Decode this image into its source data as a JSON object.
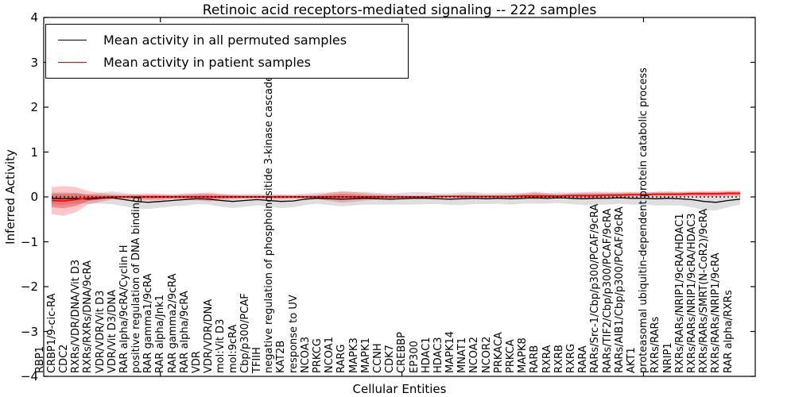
{
  "title": "Retinoic acid receptors-mediated signaling -- 222 samples",
  "axes": {
    "ylabel": "Inferred Activity",
    "xlabel": "Cellular Entities",
    "yticks": [
      4,
      3,
      2,
      1,
      0,
      -1,
      -2,
      -3,
      -4
    ]
  },
  "legend": {
    "items": [
      {
        "label": "Mean activity in all permuted samples",
        "color": "#000000"
      },
      {
        "label": "Mean activity in patient samples",
        "color": "#ff0000"
      }
    ]
  },
  "chart_data": {
    "type": "line",
    "title": "Retinoic acid receptors-mediated signaling -- 222 samples",
    "xlabel": "Cellular Entities",
    "ylabel": "Inferred Activity",
    "ylim": [
      -4,
      4
    ],
    "legend_position": "upper left",
    "grid": false,
    "zero_line": {
      "show": true,
      "style": "dotted",
      "color": "#000000"
    },
    "colors": {
      "permuted_line": "#000000",
      "patient_line": "#ff0000",
      "permuted_band": "rgba(0,0,0,0.13)",
      "patient_band_outer": "rgba(255,0,0,0.22)",
      "patient_band_inner": "rgba(220,0,0,0.30)"
    },
    "categories": [
      "RBP1",
      "CRBP1/9-cic-RA",
      "CDC2",
      "RXRs/VDR/DNA/Vit D3",
      "RXRs/RXRs/DNA/9cRA",
      "VDR/VDR/Vit D3",
      "VDR/Vit D3/DNA",
      "RAR alpha/9cRA/Cyclin H",
      "positive regulation of DNA binding",
      "RAR gamma1/9cRA",
      "RAR alpha/Jnk1",
      "RAR gamma2/9cRA",
      "RAR alpha/9cRA",
      "VDR",
      "VDR/VDR/DNA",
      "mol:Vit D3",
      "mol:9cRA",
      "Cbp/p300/PCAF",
      "TFIIH",
      "negative regulation of phosphoinositide 3-kinase cascade",
      "KAT2B",
      "response to UV",
      "NCOA3",
      "PRKCG",
      "NCOA1",
      "RARG",
      "MAPK3",
      "MAPK1",
      "CCNH",
      "CDK7",
      "CREBBP",
      "EP300",
      "HDAC1",
      "HDAC3",
      "MAPK14",
      "MNAT1",
      "NCOA2",
      "NCOR2",
      "PRKACA",
      "PRKCA",
      "MAPK8",
      "RARB",
      "RXRA",
      "RXRB",
      "RXRG",
      "RARA",
      "RARs/Src-1/Cbp/p300/PCAF/9cRA",
      "RARs/TIF2/Cbp/p300/PCAF/9cRA",
      "RARs/AIB1/Cbp/p300/PCAF/9cRA",
      "AKT1",
      "proteasomal ubiquitin-dependent protein catabolic process",
      "RXRs/RARs",
      "NRIP1",
      "RXRs/RARs/NRIP1/9cRA/HDAC1",
      "RXRs/RARs/NRIP1/9cRA/HDAC3",
      "RXRs/RARs/SMRT(N-CoR2)/9cRA",
      "RXRs/RARs/NRIP1/9cRA",
      "RAR alpha/RXRs"
    ],
    "series": [
      {
        "name": "Mean activity in all permuted samples",
        "color": "#000000",
        "values": [
          -0.03,
          -0.04,
          -0.03,
          -0.05,
          -0.03,
          -0.02,
          -0.06,
          -0.1,
          -0.12,
          -0.1,
          -0.08,
          -0.06,
          -0.04,
          -0.05,
          -0.08,
          -0.1,
          -0.08,
          -0.06,
          -0.08,
          -0.1,
          -0.09,
          -0.05,
          -0.03,
          -0.04,
          -0.05,
          -0.04,
          -0.03,
          -0.04,
          -0.05,
          -0.04,
          -0.03,
          -0.03,
          -0.04,
          -0.05,
          -0.04,
          -0.03,
          -0.04,
          -0.03,
          -0.04,
          -0.03,
          -0.02,
          -0.03,
          -0.02,
          -0.03,
          -0.04,
          -0.03,
          -0.03,
          -0.02,
          -0.03,
          -0.03,
          -0.04,
          -0.03,
          -0.04,
          -0.06,
          -0.1,
          -0.12,
          -0.08,
          -0.05
        ],
        "band_halfwidth": [
          0.13,
          0.14,
          0.12,
          0.1,
          0.12,
          0.14,
          0.15,
          0.16,
          0.15,
          0.14,
          0.13,
          0.14,
          0.12,
          0.12,
          0.14,
          0.15,
          0.14,
          0.13,
          0.14,
          0.15,
          0.14,
          0.13,
          0.12,
          0.14,
          0.16,
          0.15,
          0.14,
          0.13,
          0.12,
          0.13,
          0.14,
          0.13,
          0.12,
          0.13,
          0.14,
          0.13,
          0.12,
          0.12,
          0.13,
          0.12,
          0.13,
          0.12,
          0.12,
          0.13,
          0.14,
          0.15,
          0.14,
          0.13,
          0.14,
          0.14,
          0.15,
          0.16,
          0.15,
          0.17,
          0.2,
          0.18,
          0.15,
          0.12
        ]
      },
      {
        "name": "Mean activity in patient samples",
        "color": "#ff0000",
        "values": [
          -0.08,
          -0.09,
          -0.06,
          -0.02,
          -0.01,
          0.0,
          0.0,
          0.0,
          0.0,
          0.0,
          0.0,
          0.0,
          0.0,
          0.0,
          0.0,
          0.0,
          0.0,
          0.0,
          0.0,
          0.0,
          0.0,
          0.0,
          0.0,
          0.0,
          0.0,
          0.0,
          0.0,
          0.0,
          0.0,
          0.0,
          0.0,
          0.0,
          0.01,
          0.01,
          0.01,
          0.01,
          0.01,
          0.01,
          0.01,
          0.02,
          0.02,
          0.02,
          0.02,
          0.03,
          0.03,
          0.03,
          0.04,
          0.04,
          0.05,
          0.05,
          0.06,
          0.06,
          0.06,
          0.07,
          0.07,
          0.07,
          0.08,
          0.08
        ],
        "band_halfwidth_outer": [
          0.3,
          0.33,
          0.28,
          0.15,
          0.1,
          0.06,
          0.05,
          0.06,
          0.08,
          0.07,
          0.05,
          0.06,
          0.08,
          0.1,
          0.07,
          0.05,
          0.04,
          0.04,
          0.04,
          0.05,
          0.04,
          0.04,
          0.05,
          0.09,
          0.13,
          0.11,
          0.08,
          0.06,
          0.05,
          0.04,
          0.03,
          0.03,
          0.03,
          0.03,
          0.04,
          0.03,
          0.03,
          0.03,
          0.04,
          0.05,
          0.08,
          0.06,
          0.04,
          0.05,
          0.06,
          0.06,
          0.05,
          0.05,
          0.05,
          0.04,
          0.05,
          0.05,
          0.05,
          0.05,
          0.06,
          0.06,
          0.06,
          0.06
        ],
        "band_inner_ratio": 0.5
      }
    ]
  }
}
